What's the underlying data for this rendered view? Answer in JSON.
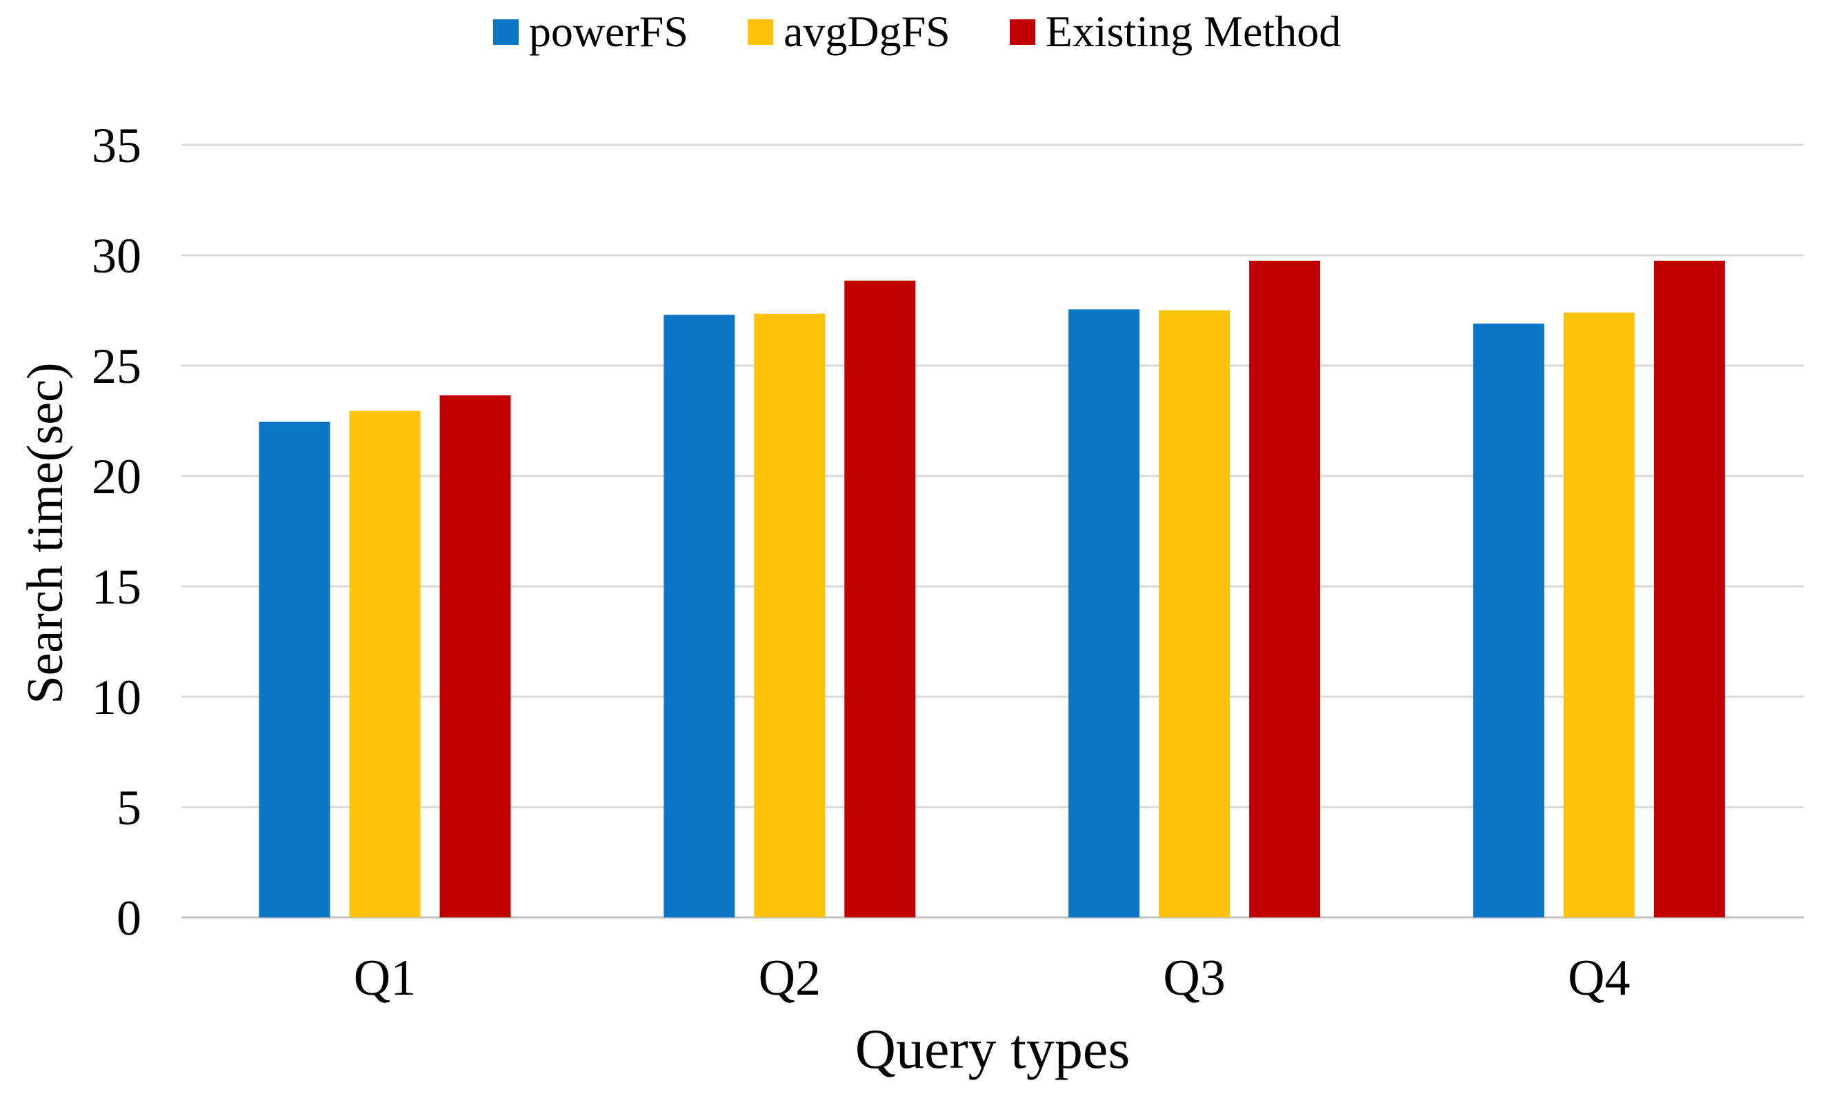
{
  "chart_data": {
    "type": "bar",
    "title": "",
    "categories": [
      "Q1",
      "Q2",
      "Q3",
      "Q4"
    ],
    "series": [
      {
        "name": "powerFS",
        "color": "#0B76C5",
        "values": [
          22.45,
          27.3,
          27.55,
          26.9
        ]
      },
      {
        "name": "avgDgFS",
        "color": "#FFC20A",
        "values": [
          22.95,
          27.35,
          27.5,
          27.4
        ]
      },
      {
        "name": "Existing Method",
        "color": "#C00000",
        "values": [
          23.65,
          28.85,
          29.75,
          29.75
        ]
      }
    ],
    "xlabel": "Query types",
    "ylabel": "Search time(sec)",
    "ylim": [
      0,
      35
    ],
    "yticks": [
      0,
      5,
      10,
      15,
      20,
      25,
      30,
      35
    ],
    "grid": true,
    "legend_position": "top",
    "grid_color": "#D9D9D9",
    "axis_line_color": "#BFBFBF",
    "text_color": "#000000",
    "background": "#FFFFFF"
  }
}
